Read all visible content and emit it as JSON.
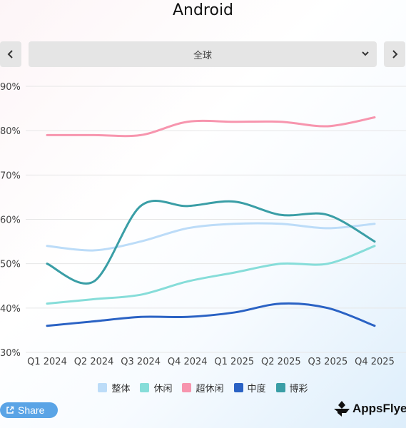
{
  "page": {
    "title": "Android",
    "region_select": {
      "value": "全球"
    },
    "share_label": "Share",
    "brand": "AppsFlyer"
  },
  "colors": {
    "整体": "#bcdcf8",
    "休闲": "#86ddd9",
    "超休闲": "#f795ae",
    "中度": "#2a62c4",
    "博彩": "#3a9ea6"
  },
  "icons": {
    "prev": "chevron-left-icon",
    "next": "chevron-right-icon",
    "dropdown": "chevron-down-icon",
    "share": "share-icon",
    "logo": "appsflyer-logo-icon"
  },
  "chart_data": {
    "type": "line",
    "categories": [
      "Q1 2024",
      "Q2 2024",
      "Q3 2024",
      "Q4 2024",
      "Q1 2025",
      "Q2 2025",
      "Q3 2025",
      "Q4 2025"
    ],
    "y_ticks": [
      "30%",
      "40%",
      "50%",
      "60%",
      "70%",
      "80%",
      "90%"
    ],
    "ylim": [
      30,
      90
    ],
    "grid": true,
    "legend_position": "bottom",
    "series": [
      {
        "name": "整体",
        "values": [
          54,
          53,
          55,
          58,
          59,
          59,
          58,
          59
        ]
      },
      {
        "name": "休闲",
        "values": [
          41,
          42,
          43,
          46,
          48,
          50,
          50,
          54
        ]
      },
      {
        "name": "超休闲",
        "values": [
          79,
          79,
          79,
          82,
          82,
          82,
          81,
          83
        ]
      },
      {
        "name": "中度",
        "values": [
          36,
          37,
          38,
          38,
          39,
          41,
          40,
          36
        ]
      },
      {
        "name": "博彩",
        "values": [
          50,
          46,
          63,
          63,
          64,
          61,
          61,
          55
        ]
      }
    ]
  }
}
